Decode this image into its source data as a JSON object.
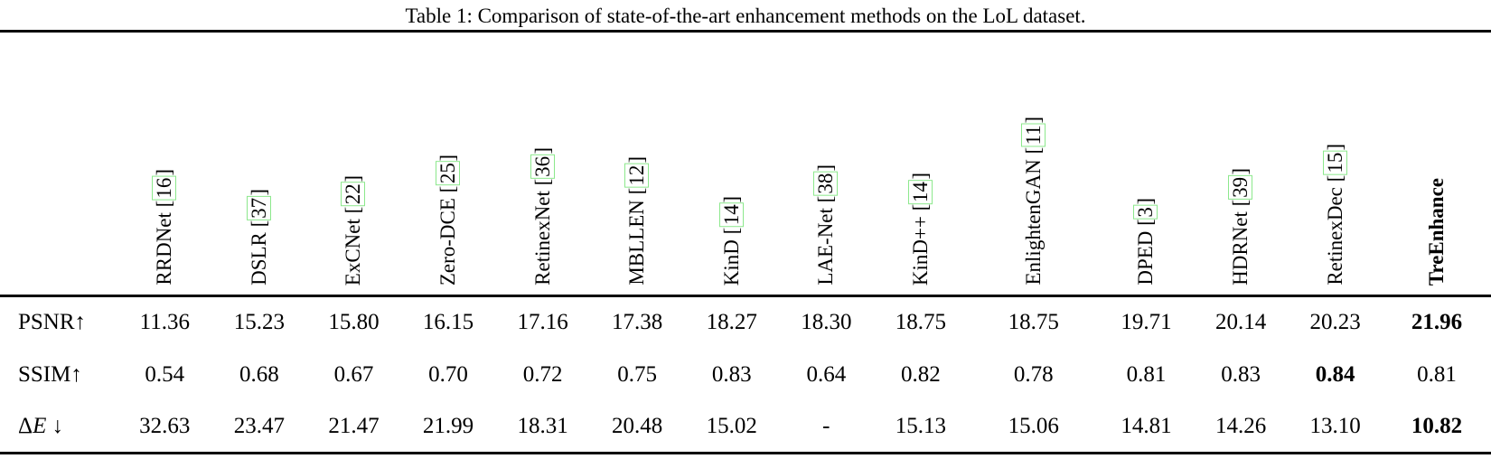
{
  "title": "Table 1: Comparison of state-of-the-art enhancement methods on the LoL dataset.",
  "colors": {
    "background": "#ffffff",
    "text": "#000000",
    "rule": "#000000",
    "citation_box_green": "#8ce88c"
  },
  "table": {
    "columns": [
      {
        "name": "RRDNet",
        "cite": "16"
      },
      {
        "name": "DSLR",
        "cite": "37"
      },
      {
        "name": "ExCNet",
        "cite": "22"
      },
      {
        "name": "Zero-DCE",
        "cite": "25"
      },
      {
        "name": "RetinexNet",
        "cite": "36"
      },
      {
        "name": "MBLLEN",
        "cite": "12"
      },
      {
        "name": "KinD",
        "cite": "14"
      },
      {
        "name": "LAE-Net",
        "cite": "38"
      },
      {
        "name": "KinD++",
        "cite": "14"
      },
      {
        "name": "EnlightenGAN",
        "cite": "11",
        "wide": true
      },
      {
        "name": "DPED",
        "cite": "3"
      },
      {
        "name": "HDRNet",
        "cite": "39"
      },
      {
        "name": "RetinexDec",
        "cite": "15"
      },
      {
        "name": "TreEnhance",
        "cite": null,
        "bold": true,
        "last": true
      }
    ],
    "rows": [
      {
        "label": "PSNR",
        "arrow": "↑",
        "math": false,
        "values": [
          "11.36",
          "15.23",
          "15.80",
          "16.15",
          "17.16",
          "17.38",
          "18.27",
          "18.30",
          "18.75",
          "18.75",
          "19.71",
          "20.14",
          "20.23",
          "21.96"
        ],
        "bold_indices": [
          13
        ]
      },
      {
        "label": "SSIM",
        "arrow": "↑",
        "math": false,
        "values": [
          "0.54",
          "0.68",
          "0.67",
          "0.70",
          "0.72",
          "0.75",
          "0.83",
          "0.64",
          "0.82",
          "0.78",
          "0.81",
          "0.83",
          "0.84",
          "0.81"
        ],
        "bold_indices": [
          12
        ]
      },
      {
        "label": "ΔE",
        "arrow": " ↓",
        "math": true,
        "values": [
          "32.63",
          "23.47",
          "21.47",
          "21.99",
          "18.31",
          "20.48",
          "15.02",
          "-",
          "15.13",
          "15.06",
          "14.81",
          "14.26",
          "13.10",
          "10.82"
        ],
        "bold_indices": [
          13
        ]
      }
    ]
  }
}
